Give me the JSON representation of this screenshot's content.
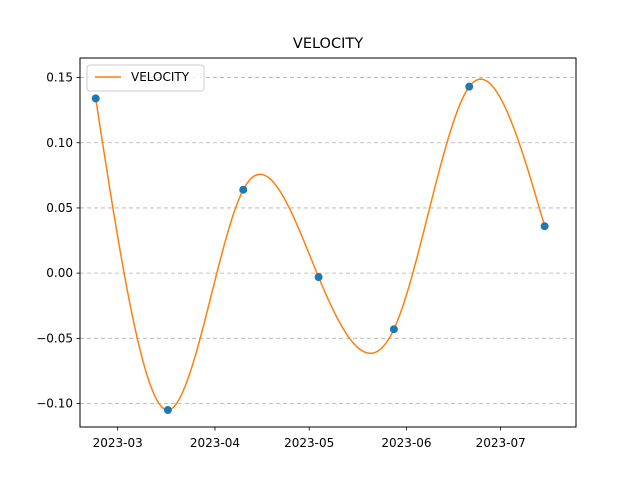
{
  "chart_data": {
    "type": "line",
    "title": "VELOCITY",
    "xlabel": "",
    "ylabel": "",
    "x_type": "date",
    "xlim": [
      "2023-02-17",
      "2023-07-25"
    ],
    "ylim": [
      -0.118,
      0.165
    ],
    "y_ticks": [
      -0.1,
      -0.05,
      0.0,
      0.05,
      0.1,
      0.15
    ],
    "y_tick_labels": [
      "−0.10",
      "−0.05",
      "0.00",
      "0.05",
      "0.10",
      "0.15"
    ],
    "x_ticks": [
      "2023-03-01",
      "2023-04-01",
      "2023-05-01",
      "2023-06-01",
      "2023-07-01"
    ],
    "x_tick_labels": [
      "2023-03",
      "2023-04",
      "2023-05",
      "2023-06",
      "2023-07"
    ],
    "grid": "y-dashed",
    "legend": {
      "position": "upper-left",
      "entries": [
        "VELOCITY"
      ]
    },
    "series": [
      {
        "name": "VELOCITY",
        "kind": "smooth-line",
        "color": "#ff7f0e",
        "x": [
          "2023-02-22",
          "2023-03-17",
          "2023-04-10",
          "2023-05-04",
          "2023-05-28",
          "2023-06-21",
          "2023-07-15"
        ],
        "y": [
          0.134,
          -0.105,
          0.064,
          -0.003,
          -0.043,
          0.143,
          0.036
        ]
      },
      {
        "kind": "scatter",
        "color": "#1f77b4",
        "x": [
          "2023-02-22",
          "2023-03-17",
          "2023-04-10",
          "2023-05-04",
          "2023-05-28",
          "2023-06-21",
          "2023-07-15"
        ],
        "y": [
          0.134,
          -0.105,
          0.064,
          -0.003,
          -0.043,
          0.143,
          0.036
        ]
      }
    ]
  }
}
